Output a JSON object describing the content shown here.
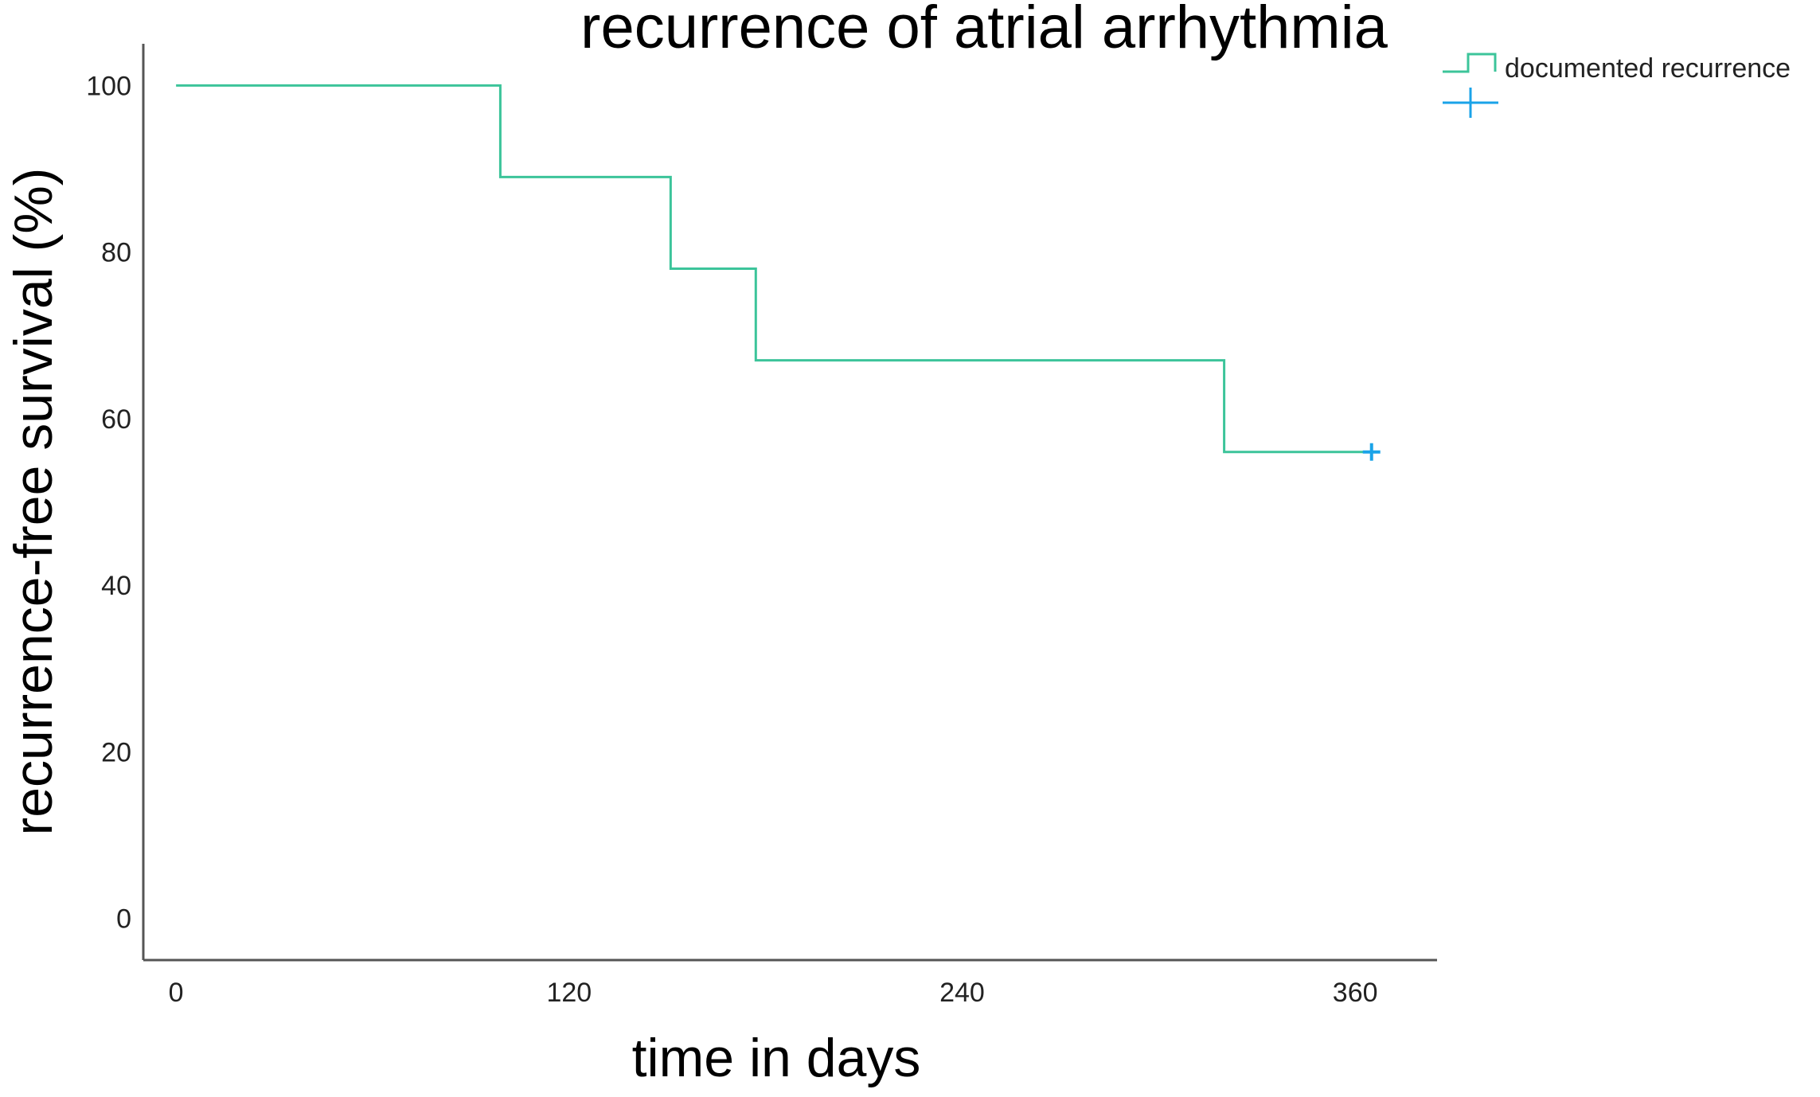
{
  "chart_data": {
    "type": "line",
    "title": "recurrence of atrial arrhythmia",
    "xlabel": "time in days",
    "ylabel": "recurrence-free survival (%)",
    "xlim": [
      -10,
      385
    ],
    "ylim": [
      -5,
      105
    ],
    "x_ticks": [
      0,
      120,
      240,
      360
    ],
    "y_ticks": [
      0,
      20,
      40,
      60,
      80,
      100
    ],
    "grid": false,
    "legend_position": "top-right",
    "series": [
      {
        "name": "documented recurrence",
        "style": "step",
        "color": "#3cc49a",
        "points": [
          {
            "x": 0,
            "y": 100
          },
          {
            "x": 99,
            "y": 100
          },
          {
            "x": 99,
            "y": 89
          },
          {
            "x": 151,
            "y": 89
          },
          {
            "x": 151,
            "y": 78
          },
          {
            "x": 177,
            "y": 78
          },
          {
            "x": 177,
            "y": 67
          },
          {
            "x": 320,
            "y": 67
          },
          {
            "x": 320,
            "y": 56
          },
          {
            "x": 365,
            "y": 56
          }
        ],
        "censored": [
          {
            "x": 365,
            "y": 56
          }
        ]
      }
    ],
    "legend": [
      {
        "label": "documented recurrence",
        "symbol": "step",
        "color": "#3cc49a"
      },
      {
        "label": "",
        "symbol": "censor-plus",
        "color": "#1aa3e8"
      }
    ],
    "censor_color": "#1aa3e8"
  }
}
